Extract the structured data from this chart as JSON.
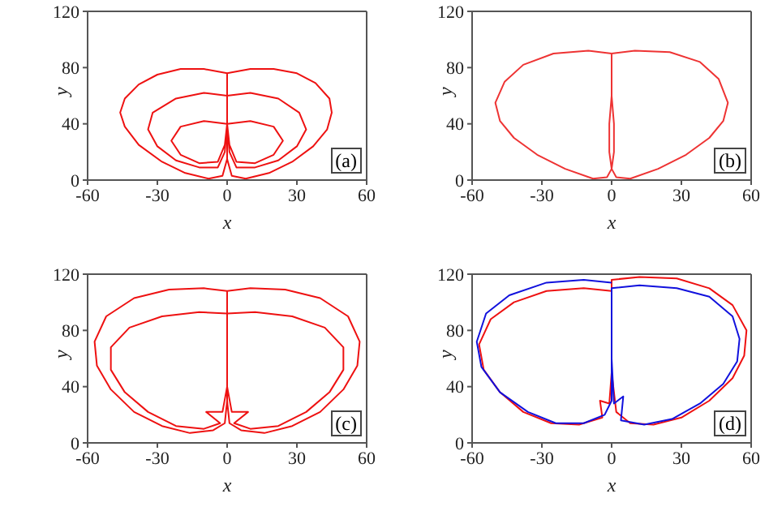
{
  "chart_data": [
    {
      "type": "line",
      "xlabel": "x",
      "ylabel": "y",
      "xlim": [
        -60,
        60
      ],
      "ylim": [
        0,
        120
      ],
      "xticks": [
        -60,
        -30,
        0,
        30,
        60
      ],
      "yticks": [
        0,
        40,
        80,
        120
      ],
      "marker": "none",
      "annotations": [
        "(a)"
      ],
      "series": [
        {
          "color": "#ee1111",
          "x": [
            0,
            -10,
            -20,
            -30,
            -38,
            -44,
            -46,
            -44,
            -38,
            -28,
            -18,
            -8,
            -2,
            0,
            0,
            0,
            10,
            20,
            30,
            38,
            44,
            45,
            43,
            37,
            28,
            18,
            8,
            2,
            0,
            0,
            0,
            -10,
            -22,
            -32,
            -34,
            -30,
            -22,
            -12,
            -4,
            -1,
            0,
            0,
            10,
            22,
            31,
            34,
            30,
            22,
            12,
            4,
            1,
            0,
            0,
            -10,
            -20,
            -24,
            -20,
            -12,
            -4,
            -1,
            0,
            10,
            20,
            24,
            20,
            12,
            4,
            1,
            0
          ],
          "values": [
            76,
            79,
            79,
            75,
            68,
            58,
            48,
            38,
            25,
            13,
            5,
            1,
            3,
            15,
            40,
            76,
            79,
            79,
            76,
            69,
            58,
            48,
            36,
            24,
            13,
            5,
            1,
            3,
            15,
            40,
            60,
            62,
            58,
            48,
            36,
            24,
            14,
            9,
            9,
            20,
            40,
            60,
            62,
            58,
            48,
            36,
            24,
            14,
            9,
            9,
            20,
            40,
            40,
            42,
            38,
            28,
            18,
            12,
            13,
            25,
            40,
            42,
            38,
            28,
            18,
            12,
            13,
            25,
            40
          ]
        }
      ]
    },
    {
      "type": "line",
      "xlabel": "x",
      "ylabel": "y",
      "xlim": [
        -60,
        60
      ],
      "ylim": [
        0,
        120
      ],
      "xticks": [
        -60,
        -30,
        0,
        30,
        60
      ],
      "yticks": [
        0,
        40,
        80,
        120
      ],
      "marker": "none",
      "annotations": [
        "(b)"
      ],
      "series": [
        {
          "color": "#ee3333",
          "x": [
            0,
            -10,
            -25,
            -38,
            -46,
            -50,
            -48,
            -42,
            -32,
            -20,
            -8,
            -2,
            0,
            -1,
            -1,
            0,
            0,
            10,
            25,
            38,
            46,
            50,
            48,
            42,
            32,
            20,
            8,
            2,
            0,
            1,
            1,
            0,
            0
          ],
          "values": [
            90,
            92,
            90,
            82,
            70,
            55,
            42,
            30,
            18,
            8,
            1,
            2,
            8,
            20,
            40,
            60,
            90,
            92,
            91,
            84,
            72,
            55,
            42,
            30,
            18,
            8,
            1,
            2,
            8,
            20,
            40,
            60,
            87
          ]
        }
      ]
    },
    {
      "type": "line",
      "xlabel": "x",
      "ylabel": "y",
      "xlim": [
        -60,
        60
      ],
      "ylim": [
        0,
        120
      ],
      "xticks": [
        -60,
        -30,
        0,
        30,
        60
      ],
      "yticks": [
        0,
        40,
        80,
        120
      ],
      "marker": "none",
      "annotations": [
        "(c)"
      ],
      "series": [
        {
          "color": "#ee1111",
          "x": [
            0,
            -10,
            -25,
            -40,
            -52,
            -57,
            -56,
            -50,
            -40,
            -28,
            -16,
            -6,
            -1,
            0,
            0,
            0,
            10,
            25,
            40,
            52,
            57,
            56,
            50,
            40,
            28,
            16,
            6,
            1,
            0,
            0,
            0,
            -12,
            -28,
            -42,
            -50,
            -50,
            -44,
            -34,
            -22,
            -10,
            -3,
            -9,
            -2,
            0,
            0,
            12,
            28,
            42,
            50,
            50,
            44,
            34,
            22,
            10,
            3,
            9,
            2,
            0,
            0
          ],
          "values": [
            108,
            110,
            109,
            103,
            90,
            72,
            55,
            38,
            22,
            12,
            7,
            9,
            14,
            30,
            60,
            108,
            110,
            109,
            103,
            90,
            72,
            55,
            38,
            22,
            12,
            7,
            9,
            14,
            30,
            60,
            92,
            93,
            90,
            82,
            68,
            52,
            36,
            22,
            12,
            10,
            14,
            22,
            22,
            40,
            92,
            93,
            90,
            82,
            68,
            52,
            36,
            22,
            12,
            10,
            14,
            22,
            22,
            40,
            92
          ]
        }
      ]
    },
    {
      "type": "line",
      "xlabel": "x",
      "ylabel": "y",
      "xlim": [
        -60,
        60
      ],
      "ylim": [
        0,
        120
      ],
      "xticks": [
        -60,
        -30,
        0,
        30,
        60
      ],
      "yticks": [
        0,
        40,
        80,
        120
      ],
      "marker": "none",
      "annotations": [
        "(d)"
      ],
      "series": [
        {
          "color": "#ee1111",
          "x": [
            0,
            -12,
            -28,
            -42,
            -52,
            -57,
            -55,
            -48,
            -38,
            -26,
            -14,
            -4,
            -5,
            -1,
            0,
            0,
            12,
            28,
            42,
            52,
            58,
            57,
            52,
            42,
            30,
            18,
            8,
            2,
            0,
            0
          ],
          "values": [
            108,
            110,
            108,
            100,
            88,
            70,
            52,
            36,
            22,
            14,
            13,
            18,
            30,
            28,
            50,
            116,
            118,
            117,
            110,
            98,
            80,
            62,
            46,
            30,
            18,
            13,
            14,
            22,
            50,
            104
          ]
        },
        {
          "color": "#1111dd",
          "x": [
            0,
            -12,
            -28,
            -44,
            -54,
            -58,
            -56,
            -48,
            -36,
            -24,
            -12,
            -3,
            0,
            0,
            0,
            12,
            28,
            42,
            52,
            55,
            54,
            48,
            38,
            26,
            14,
            4,
            5,
            1,
            0,
            0
          ],
          "values": [
            114,
            116,
            114,
            105,
            92,
            72,
            54,
            36,
            22,
            14,
            14,
            20,
            30,
            60,
            110,
            112,
            110,
            104,
            90,
            74,
            58,
            42,
            28,
            17,
            13,
            16,
            33,
            28,
            60,
            100
          ]
        }
      ]
    }
  ]
}
